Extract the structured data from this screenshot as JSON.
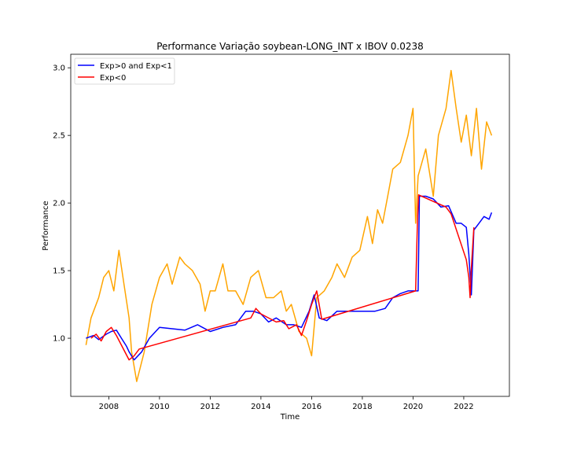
{
  "chart_data": {
    "type": "line",
    "title": "Performance Variação soybean-LONG_INT x IBOV 0.0238",
    "xlabel": "Time",
    "ylabel": "Performance",
    "xlim": [
      2006.5,
      2023.8
    ],
    "ylim": [
      0.57,
      3.1
    ],
    "x_ticks": [
      2008,
      2010,
      2012,
      2014,
      2016,
      2018,
      2020,
      2022
    ],
    "x_tick_labels": [
      "2008",
      "2010",
      "2012",
      "2014",
      "2016",
      "2018",
      "2020",
      "2022"
    ],
    "y_ticks": [
      1.0,
      1.5,
      2.0,
      2.5,
      3.0
    ],
    "y_tick_labels": [
      "1.0",
      "1.5",
      "2.0",
      "2.5",
      "3.0"
    ],
    "grid": false,
    "legend_position": "top-left",
    "legend": [
      {
        "label": "Exp>0 and Exp<1",
        "color": "#0000ff"
      },
      {
        "label": "Exp<0",
        "color": "#ff0000"
      }
    ],
    "series": [
      {
        "color": "#ffa500",
        "x": [
          2007.1,
          2007.3,
          2007.6,
          2007.8,
          2008.0,
          2008.2,
          2008.4,
          2008.6,
          2008.8,
          2008.9,
          2009.1,
          2009.4,
          2009.7,
          2010.0,
          2010.3,
          2010.5,
          2010.8,
          2011.0,
          2011.3,
          2011.6,
          2011.8,
          2012.0,
          2012.2,
          2012.5,
          2012.7,
          2013.0,
          2013.3,
          2013.6,
          2013.9,
          2014.2,
          2014.5,
          2014.8,
          2015.0,
          2015.2,
          2015.5,
          2015.8,
          2016.0,
          2016.2,
          2016.5,
          2016.8,
          2017.0,
          2017.3,
          2017.6,
          2017.9,
          2018.2,
          2018.4,
          2018.6,
          2018.8,
          2019.0,
          2019.2,
          2019.5,
          2019.8,
          2020.0,
          2020.1,
          2020.2,
          2020.5,
          2020.8,
          2021.0,
          2021.3,
          2021.5,
          2021.7,
          2021.9,
          2022.1,
          2022.3,
          2022.5,
          2022.7,
          2022.9,
          2023.1
        ],
        "y": [
          0.95,
          1.15,
          1.3,
          1.45,
          1.5,
          1.35,
          1.65,
          1.4,
          1.15,
          0.9,
          0.68,
          0.9,
          1.25,
          1.45,
          1.55,
          1.4,
          1.6,
          1.55,
          1.5,
          1.4,
          1.2,
          1.35,
          1.35,
          1.55,
          1.35,
          1.35,
          1.25,
          1.45,
          1.5,
          1.3,
          1.3,
          1.35,
          1.2,
          1.25,
          1.05,
          1.0,
          0.87,
          1.3,
          1.35,
          1.45,
          1.55,
          1.45,
          1.6,
          1.65,
          1.9,
          1.7,
          1.95,
          1.85,
          2.05,
          2.25,
          2.3,
          2.5,
          2.7,
          1.85,
          2.2,
          2.4,
          2.05,
          2.5,
          2.7,
          2.98,
          2.7,
          2.45,
          2.65,
          2.35,
          2.7,
          2.25,
          2.6,
          2.5
        ]
      },
      {
        "color": "#0000ff",
        "x": [
          2007.1,
          2007.4,
          2007.6,
          2007.9,
          2008.1,
          2008.3,
          2008.5,
          2008.7,
          2008.8,
          2009.0,
          2009.3,
          2009.6,
          2010.0,
          2010.5,
          2011.0,
          2011.5,
          2012.0,
          2012.5,
          2013.0,
          2013.4,
          2013.7,
          2014.0,
          2014.3,
          2014.6,
          2015.0,
          2015.3,
          2015.6,
          2015.9,
          2016.1,
          2016.3,
          2016.6,
          2017.0,
          2017.5,
          2018.0,
          2018.5,
          2018.9,
          2019.2,
          2019.5,
          2019.8,
          2020.1,
          2020.2,
          2020.25,
          2020.5,
          2020.8,
          2021.1,
          2021.4,
          2021.7,
          2021.9,
          2022.1,
          2022.2,
          2022.3,
          2022.4,
          2022.6,
          2022.8,
          2023.0,
          2023.1
        ],
        "y": [
          1.0,
          1.02,
          0.99,
          1.03,
          1.05,
          1.06,
          1.0,
          0.94,
          0.9,
          0.84,
          0.9,
          1.0,
          1.08,
          1.07,
          1.06,
          1.1,
          1.05,
          1.08,
          1.1,
          1.2,
          1.2,
          1.18,
          1.12,
          1.15,
          1.1,
          1.1,
          1.08,
          1.2,
          1.32,
          1.15,
          1.13,
          1.2,
          1.2,
          1.2,
          1.2,
          1.22,
          1.3,
          1.33,
          1.35,
          1.35,
          1.35,
          2.05,
          2.05,
          2.03,
          1.97,
          1.98,
          1.85,
          1.85,
          1.82,
          1.62,
          1.32,
          1.8,
          1.85,
          1.9,
          1.88,
          1.93
        ]
      },
      {
        "color": "#ff0000",
        "x": [
          2007.3,
          2007.5,
          2007.7,
          2007.9,
          2008.1,
          2008.3,
          2008.8,
          2009.0,
          2009.2,
          2013.6,
          2013.8,
          2014.0,
          2014.6,
          2014.9,
          2015.1,
          2015.4,
          2015.6,
          2015.8,
          2016.0,
          2016.2,
          2016.4,
          2020.1,
          2020.18,
          2020.22,
          2021.3,
          2021.5,
          2022.1,
          2022.2,
          2022.25,
          2022.3,
          2022.4
        ],
        "y": [
          1.0,
          1.03,
          0.98,
          1.05,
          1.08,
          1.02,
          0.84,
          0.87,
          0.92,
          1.15,
          1.22,
          1.18,
          1.12,
          1.13,
          1.07,
          1.1,
          1.02,
          1.13,
          1.25,
          1.35,
          1.14,
          1.35,
          1.9,
          2.06,
          1.97,
          1.92,
          1.58,
          1.45,
          1.3,
          1.52,
          1.82
        ]
      }
    ]
  }
}
